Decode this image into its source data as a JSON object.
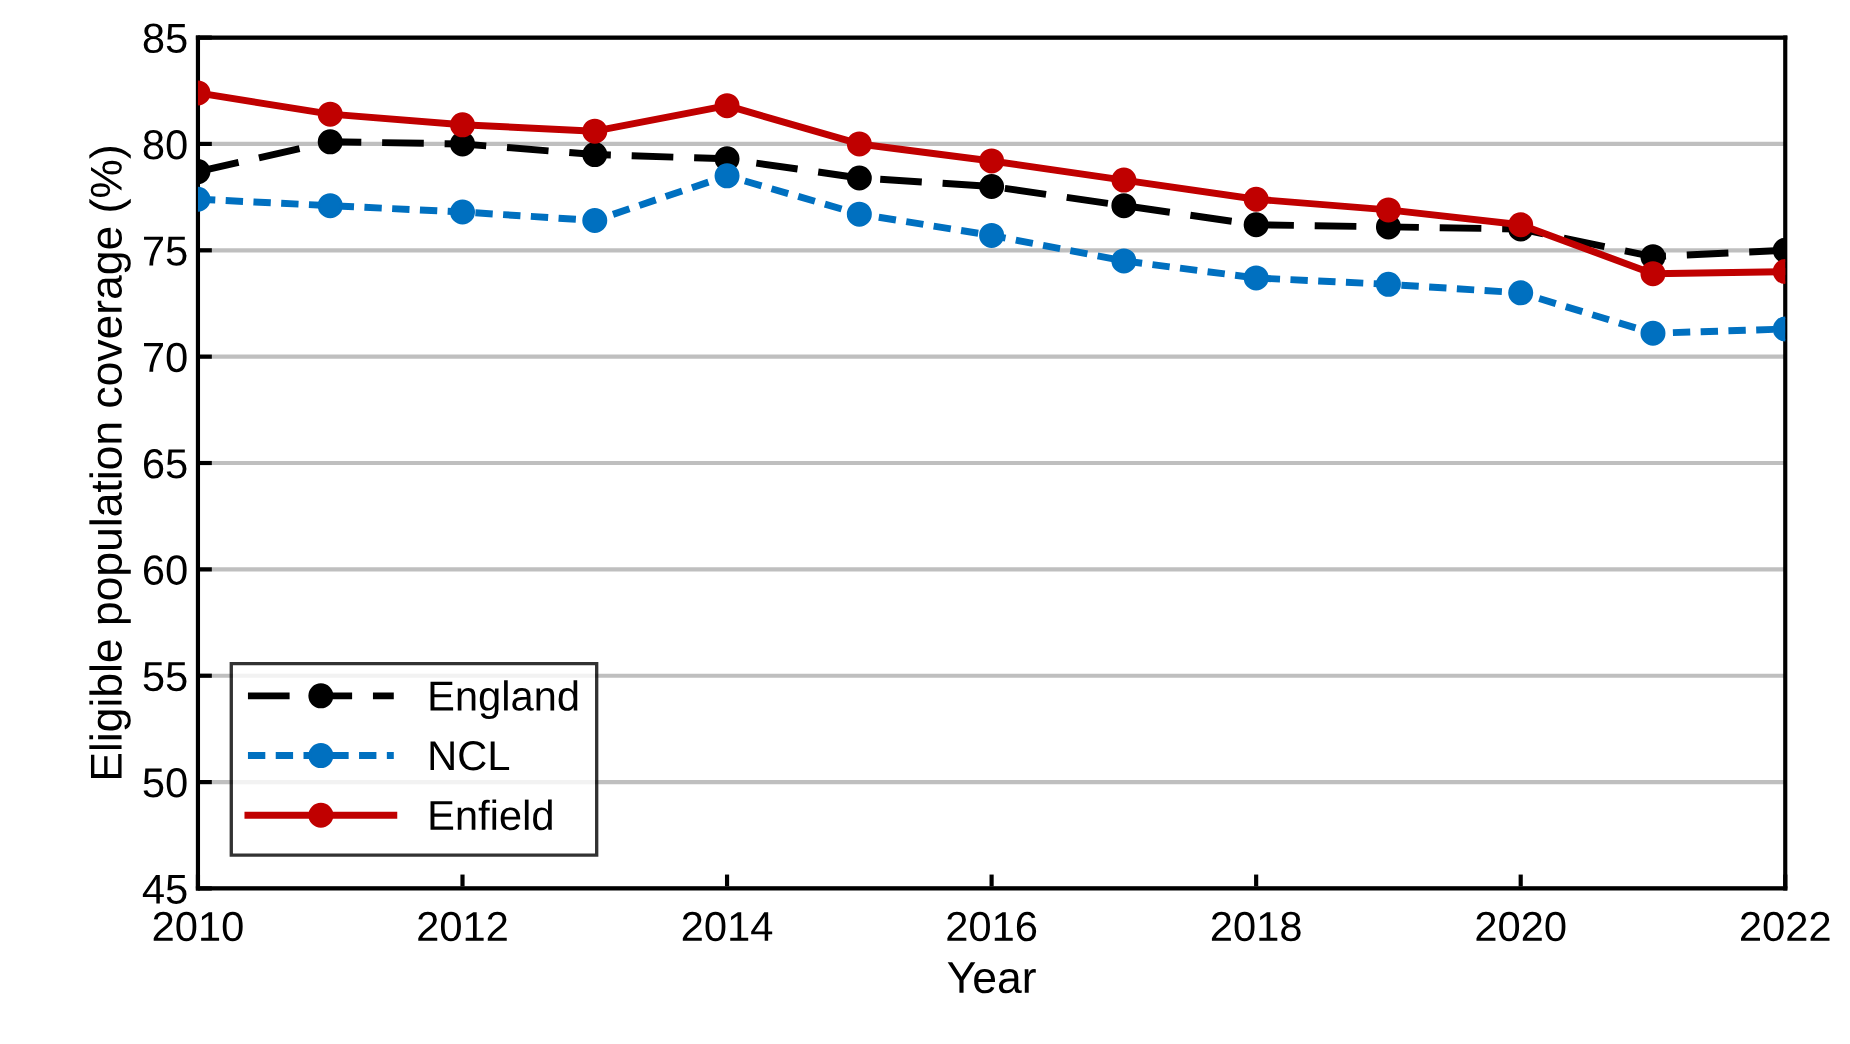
{
  "chart_data": {
    "type": "line",
    "xlabel": "Year",
    "ylabel": "Eligible population coverage (%)",
    "x": [
      2010,
      2011,
      2012,
      2013,
      2014,
      2015,
      2016,
      2017,
      2018,
      2019,
      2020,
      2021,
      2022
    ],
    "series": [
      {
        "name": "England",
        "color": "#000000",
        "line_style": "dashed",
        "values": [
          78.7,
          80.1,
          80.0,
          79.5,
          79.3,
          78.4,
          78.0,
          77.1,
          76.2,
          76.1,
          76.0,
          74.7,
          75.0
        ]
      },
      {
        "name": "NCL",
        "color": "#0070c0",
        "line_style": "dotted",
        "values": [
          77.4,
          77.1,
          76.8,
          76.4,
          78.5,
          76.7,
          75.7,
          74.5,
          73.7,
          73.4,
          73.0,
          71.1,
          71.3
        ]
      },
      {
        "name": "Enfield",
        "color": "#c00000",
        "line_style": "solid",
        "values": [
          82.4,
          81.4,
          80.9,
          80.6,
          81.8,
          80.0,
          79.2,
          78.3,
          77.4,
          76.9,
          76.2,
          73.9,
          74.0
        ]
      }
    ],
    "marker": "circle",
    "xlim": [
      2010,
      2022
    ],
    "xticks": [
      2010,
      2012,
      2014,
      2016,
      2018,
      2020,
      2022
    ],
    "ylim": [
      45,
      85
    ],
    "yticks": [
      45,
      50,
      55,
      60,
      65,
      70,
      75,
      80,
      85
    ],
    "grid": "y",
    "legend": "bottom left"
  }
}
